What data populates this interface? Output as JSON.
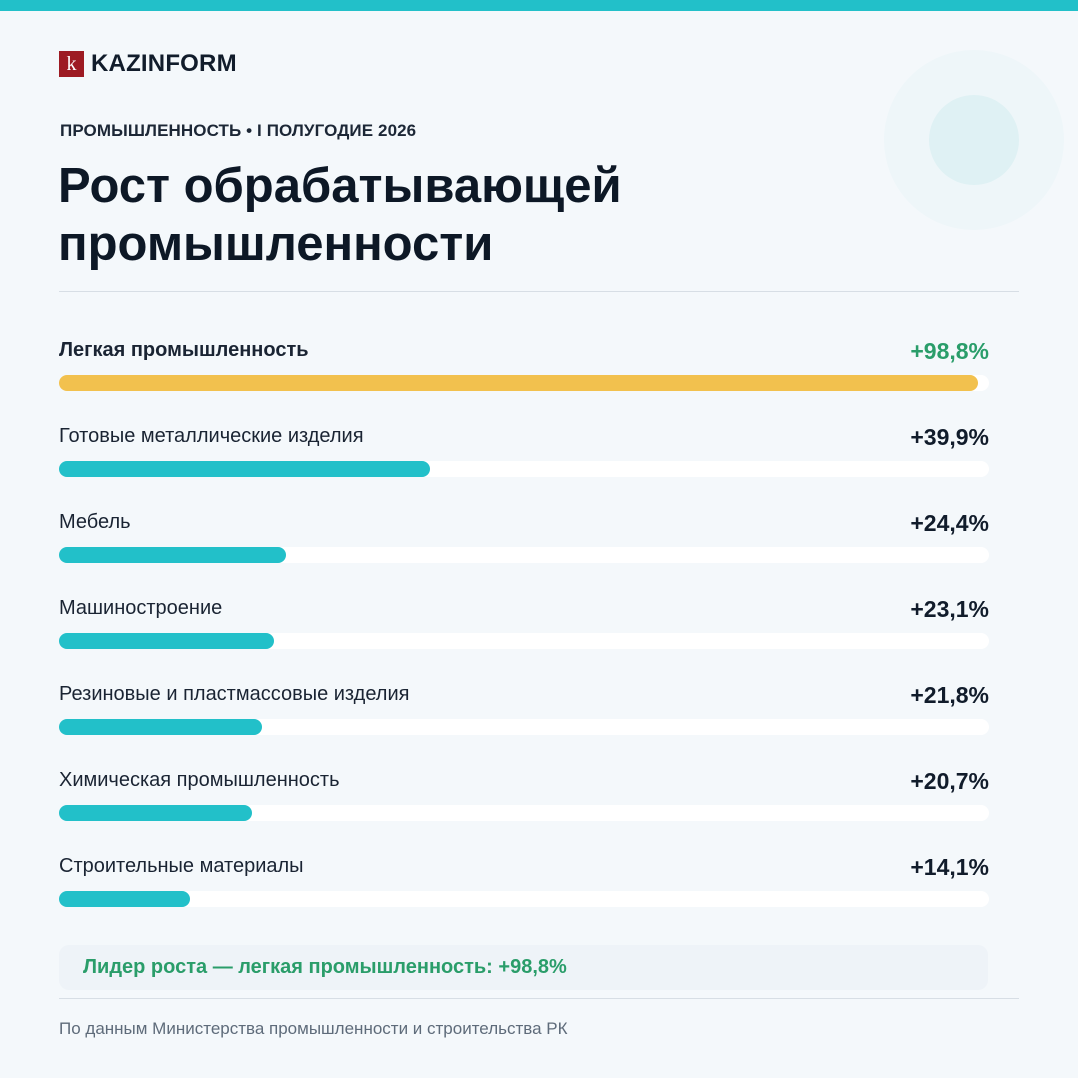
{
  "logo": {
    "mark": "k",
    "name": "KAZINFORM"
  },
  "kicker": "ПРОМЫШЛЕННОСТЬ • I ПОЛУГОДИЕ 2026",
  "title": "Рост обрабатывающей промышленности",
  "colors": {
    "accent": "#22c0c9",
    "leader_bar": "#f2c14e",
    "positive_text": "#2a9d6a",
    "track": "#ffffff"
  },
  "chart_data": {
    "type": "bar",
    "orientation": "horizontal",
    "title": "Рост обрабатывающей промышленности",
    "unit": "%",
    "xlim": [
      0,
      100
    ],
    "grid": false,
    "legend": "none",
    "categories": [
      "Легкая промышленность",
      "Готовые металлические изделия",
      "Мебель",
      "Машиностроение",
      "Резиновые и пластмассовые изделия",
      "Химическая промышленность",
      "Строительные материалы"
    ],
    "values": [
      98.8,
      39.9,
      24.4,
      23.1,
      21.8,
      20.7,
      14.1
    ],
    "value_labels": [
      "+98,8%",
      "+39,9%",
      "+24,4%",
      "+23,1%",
      "+21,8%",
      "+20,7%",
      "+14,1%"
    ],
    "highlight_index": 0
  },
  "note": "Лидер роста — легкая промышленность: +98,8%",
  "source": "По данным Министерства промышленности и строительства РК"
}
